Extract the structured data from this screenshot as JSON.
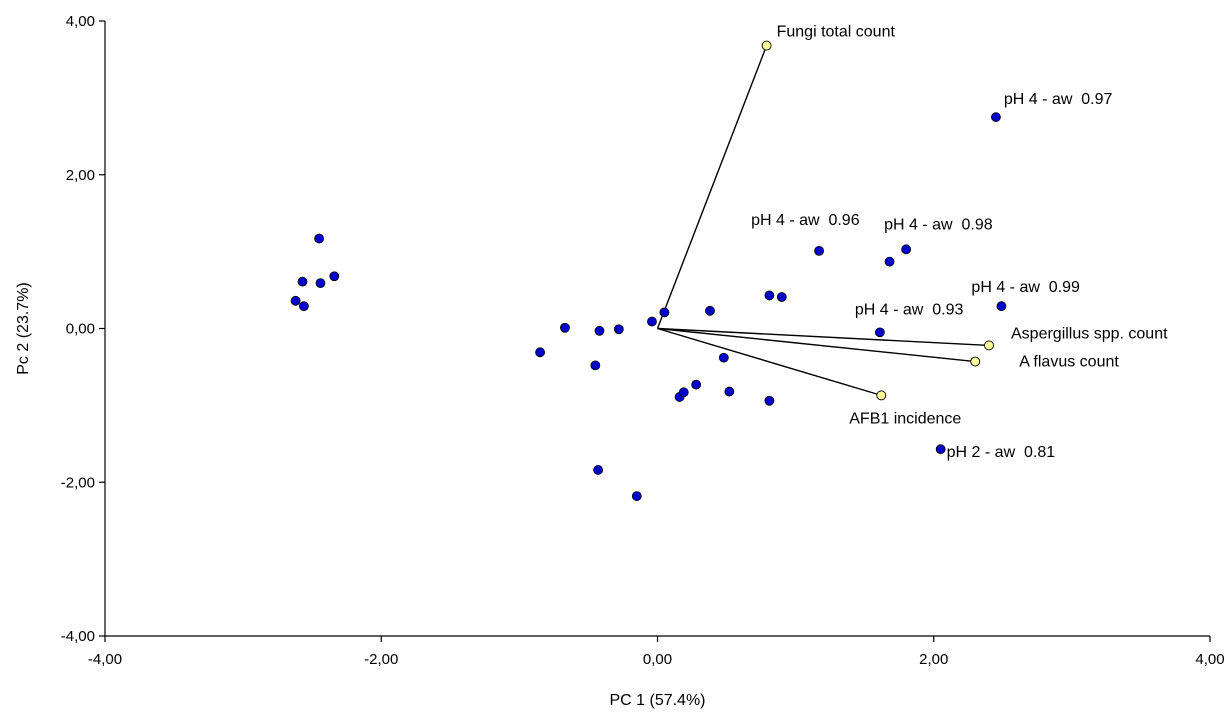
{
  "chart_data": {
    "type": "scatter",
    "subtype": "pca-biplot",
    "title": "",
    "xlabel": "PC 1 (57.4%)",
    "ylabel": "Pc 2 (23.7%)",
    "xlim": [
      -4,
      4
    ],
    "ylim": [
      -4,
      4
    ],
    "xticks": [
      {
        "value": -4,
        "label": "-4,00"
      },
      {
        "value": -2,
        "label": "-2,00"
      },
      {
        "value": 0,
        "label": "0,00"
      },
      {
        "value": 2,
        "label": "2,00"
      },
      {
        "value": 4,
        "label": "4,00"
      }
    ],
    "yticks": [
      {
        "value": -4,
        "label": "-4,00"
      },
      {
        "value": -2,
        "label": "-2,00"
      },
      {
        "value": 0,
        "label": "0,00"
      },
      {
        "value": 2,
        "label": "2,00"
      },
      {
        "value": 4,
        "label": "4,00"
      }
    ],
    "grid": false,
    "colors": {
      "observations": "#0000cc",
      "variables": "#ffff99",
      "vector_line": "#000000"
    },
    "observations": [
      {
        "x": -2.45,
        "y": 1.17,
        "label": ""
      },
      {
        "x": -2.57,
        "y": 0.61,
        "label": ""
      },
      {
        "x": -2.44,
        "y": 0.59,
        "label": ""
      },
      {
        "x": -2.34,
        "y": 0.68,
        "label": ""
      },
      {
        "x": -2.62,
        "y": 0.36,
        "label": ""
      },
      {
        "x": -2.56,
        "y": 0.29,
        "label": ""
      },
      {
        "x": -0.85,
        "y": -0.31,
        "label": ""
      },
      {
        "x": -0.67,
        "y": 0.01,
        "label": ""
      },
      {
        "x": -0.42,
        "y": -0.03,
        "label": ""
      },
      {
        "x": -0.28,
        "y": -0.01,
        "label": ""
      },
      {
        "x": -0.45,
        "y": -0.48,
        "label": ""
      },
      {
        "x": -0.43,
        "y": -1.84,
        "label": ""
      },
      {
        "x": -0.15,
        "y": -2.18,
        "label": ""
      },
      {
        "x": -0.04,
        "y": 0.09,
        "label": ""
      },
      {
        "x": 0.05,
        "y": 0.21,
        "label": ""
      },
      {
        "x": 0.38,
        "y": 0.23,
        "label": ""
      },
      {
        "x": 0.16,
        "y": -0.89,
        "label": ""
      },
      {
        "x": 0.19,
        "y": -0.83,
        "label": ""
      },
      {
        "x": 0.28,
        "y": -0.73,
        "label": ""
      },
      {
        "x": 0.48,
        "y": -0.38,
        "label": ""
      },
      {
        "x": 0.52,
        "y": -0.82,
        "label": ""
      },
      {
        "x": 0.81,
        "y": 0.43,
        "label": ""
      },
      {
        "x": 0.9,
        "y": 0.41,
        "label": ""
      },
      {
        "x": 0.81,
        "y": -0.94,
        "label": ""
      },
      {
        "x": 1.17,
        "y": 1.01,
        "label": "pH 4 - aw  0.96"
      },
      {
        "x": 1.68,
        "y": 0.87,
        "label": ""
      },
      {
        "x": 1.8,
        "y": 1.03,
        "label": "pH 4 - aw  0.98"
      },
      {
        "x": 1.61,
        "y": -0.05,
        "label": "pH 4 - aw  0.93"
      },
      {
        "x": 2.45,
        "y": 2.75,
        "label": "pH 4 - aw  0.97"
      },
      {
        "x": 2.49,
        "y": 0.29,
        "label": "pH 4 - aw  0.99"
      },
      {
        "x": 2.05,
        "y": -1.57,
        "label": "pH 2 - aw  0.81"
      }
    ],
    "variables": [
      {
        "name": "Fungi total count",
        "x": 0.79,
        "y": 3.68
      },
      {
        "name": "Aspergillus spp. count",
        "x": 2.4,
        "y": -0.22
      },
      {
        "name": "A flavus count",
        "x": 2.3,
        "y": -0.43
      },
      {
        "name": "AFB1 incidence",
        "x": 1.62,
        "y": -0.87
      }
    ]
  }
}
